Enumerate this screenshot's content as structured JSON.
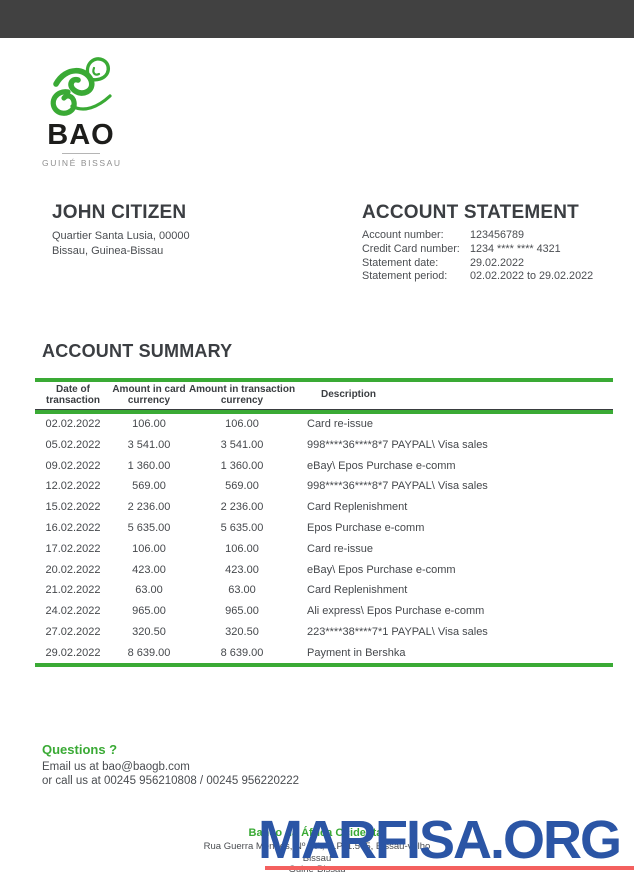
{
  "colors": {
    "topbar": "#414141",
    "green": "#3aaa35",
    "watermark_blue": "#2b55a5",
    "watermark_red": "#f4605f"
  },
  "logo": {
    "name": "BAO",
    "subtitle": "GUINÉ BISSAU"
  },
  "customer": {
    "name": "JOHN CITIZEN",
    "address_line1": "Quartier Santa Lusia, 00000",
    "address_line2": "Bissau, Guinea-Bissau"
  },
  "statement": {
    "title": "ACCOUNT STATEMENT",
    "fields": [
      {
        "label": "Account number:",
        "value": "123456789"
      },
      {
        "label": "Credit Card number:",
        "value": "1234 **** **** 4321"
      },
      {
        "label": "Statement date:",
        "value": "29.02.2022"
      },
      {
        "label": "Statement period:",
        "value": "02.02.2022 to 29.02.2022"
      }
    ]
  },
  "summary": {
    "title": "ACCOUNT SUMMARY",
    "columns": [
      "Date of transaction",
      "Amount in card currency",
      "Amount in transaction currency",
      "Description"
    ],
    "rows": [
      [
        "02.02.2022",
        "106.00",
        "106.00",
        "Card re-issue"
      ],
      [
        "05.02.2022",
        "3 541.00",
        "3 541.00",
        "998****36****8*7 PAYPAL\\ Visa sales"
      ],
      [
        "09.02.2022",
        "1 360.00",
        "1 360.00",
        "eBay\\ Epos Purchase e-comm"
      ],
      [
        "12.02.2022",
        "569.00",
        "569.00",
        "998****36****8*7 PAYPAL\\ Visa sales"
      ],
      [
        "15.02.2022",
        "2 236.00",
        "2 236.00",
        "Card Replenishment"
      ],
      [
        "16.02.2022",
        "5 635.00",
        "5 635.00",
        "Epos Purchase e-comm"
      ],
      [
        "17.02.2022",
        "106.00",
        "106.00",
        "Card re-issue"
      ],
      [
        "20.02.2022",
        "423.00",
        "423.00",
        "eBay\\ Epos Purchase e-comm"
      ],
      [
        "21.02.2022",
        "63.00",
        "63.00",
        "Card Replenishment"
      ],
      [
        "24.02.2022",
        "965.00",
        "965.00",
        "Ali express\\ Epos Purchase e-comm"
      ],
      [
        "27.02.2022",
        "320.50",
        "320.50",
        "223****38****7*1 PAYPAL\\ Visa sales"
      ],
      [
        "29.02.2022",
        "8 639.00",
        "8 639.00",
        "Payment in Bershka"
      ]
    ]
  },
  "questions": {
    "title": "Questions ?",
    "line1": "Email us at bao@baogb.com",
    "line2": "or call us at 00245 956210808 / 00245 956220222"
  },
  "footer": {
    "bank": "Banco da África Ocidental",
    "address": "Rua Guerra Mendes, Nº 8 A, C.P. 1.505, Bissau-velho",
    "city": "Bissau",
    "country": "Guine-Bissau"
  },
  "watermark": {
    "text": "MARFISA.ORG"
  }
}
